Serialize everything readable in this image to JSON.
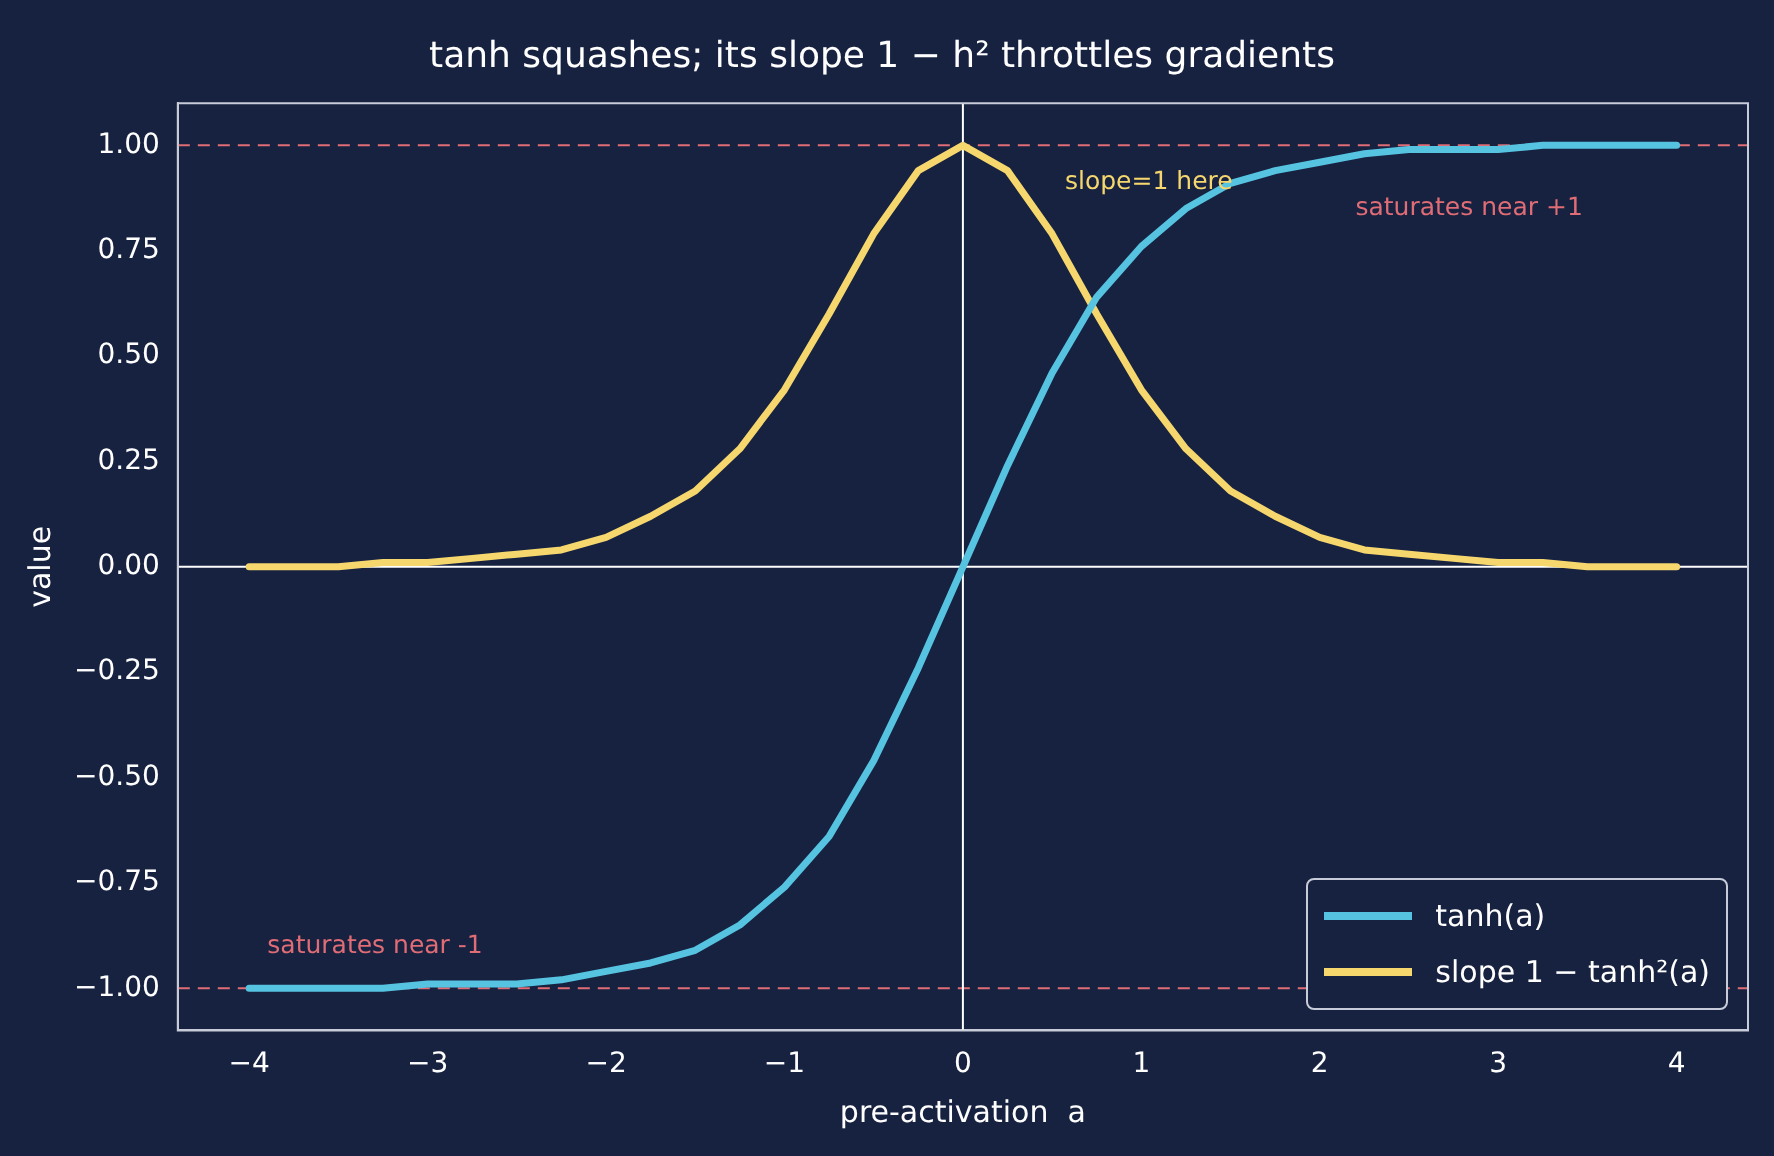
{
  "chart_data": {
    "type": "line",
    "title": "tanh squashes; its slope 1 − h² throttles gradients",
    "xlabel": "pre-activation  a",
    "ylabel": "value",
    "x": [
      -4,
      -3.75,
      -3.5,
      -3.25,
      -3,
      -2.75,
      -2.5,
      -2.25,
      -2,
      -1.75,
      -1.5,
      -1.25,
      -1,
      -0.75,
      -0.5,
      -0.25,
      0,
      0.25,
      0.5,
      0.75,
      1,
      1.25,
      1.5,
      1.75,
      2,
      2.25,
      2.5,
      2.75,
      3,
      3.25,
      3.5,
      3.75,
      4
    ],
    "series": [
      {
        "name": "tanh(a)",
        "color": "#56c3e0",
        "values": [
          -1.0,
          -1.0,
          -1.0,
          -1.0,
          -0.99,
          -0.99,
          -0.99,
          -0.98,
          -0.96,
          -0.94,
          -0.91,
          -0.85,
          -0.76,
          -0.64,
          -0.46,
          -0.24,
          0,
          0.24,
          0.46,
          0.64,
          0.76,
          0.85,
          0.91,
          0.94,
          0.96,
          0.98,
          0.99,
          0.99,
          0.99,
          1.0,
          1.0,
          1.0,
          1.0
        ]
      },
      {
        "name": "slope 1 − tanh²(a)",
        "color": "#f5d76e",
        "values": [
          0.0,
          0.0,
          0.0,
          0.01,
          0.01,
          0.02,
          0.03,
          0.04,
          0.07,
          0.12,
          0.18,
          0.28,
          0.42,
          0.6,
          0.79,
          0.94,
          1.0,
          0.94,
          0.79,
          0.6,
          0.42,
          0.28,
          0.18,
          0.12,
          0.07,
          0.04,
          0.03,
          0.02,
          0.01,
          0.01,
          0.0,
          0.0,
          0.0
        ]
      }
    ],
    "xlim": [
      -4.4,
      4.4
    ],
    "xticks": [
      {
        "value": -4,
        "label": "−4"
      },
      {
        "value": -3,
        "label": "−3"
      },
      {
        "value": -2,
        "label": "−2"
      },
      {
        "value": -1,
        "label": "−1"
      },
      0,
      1,
      2,
      3,
      4
    ],
    "ylim": [
      -1.1,
      1.1
    ],
    "yticks": [
      {
        "value": -1,
        "label": "−1.00"
      },
      {
        "value": -0.75,
        "label": "−0.75"
      },
      {
        "value": -0.5,
        "label": "−0.50"
      },
      {
        "value": -0.25,
        "label": "−0.25"
      },
      {
        "value": 0,
        "label": "0.00"
      },
      {
        "value": 0.25,
        "label": "0.25"
      },
      {
        "value": 0.5,
        "label": "0.50"
      },
      {
        "value": 0.75,
        "label": "0.75"
      },
      {
        "value": 1,
        "label": "1.00"
      }
    ],
    "ref_lines": [
      {
        "axis": "y",
        "value": 1,
        "color": "#e06c75",
        "line_style": "dashed"
      },
      {
        "axis": "y",
        "value": -1,
        "color": "#e06c75",
        "line_style": "dashed"
      },
      {
        "axis": "x",
        "value": 0,
        "color": "#ffffff",
        "line_style": "solid"
      },
      {
        "axis": "y",
        "value": 0,
        "color": "#ffffff",
        "line_style": "solid"
      }
    ],
    "annotations": [
      "slope=1 here",
      "saturates near +1",
      "saturates near -1"
    ],
    "legend": "bottom right",
    "marker": "none",
    "line_style": "solid"
  }
}
